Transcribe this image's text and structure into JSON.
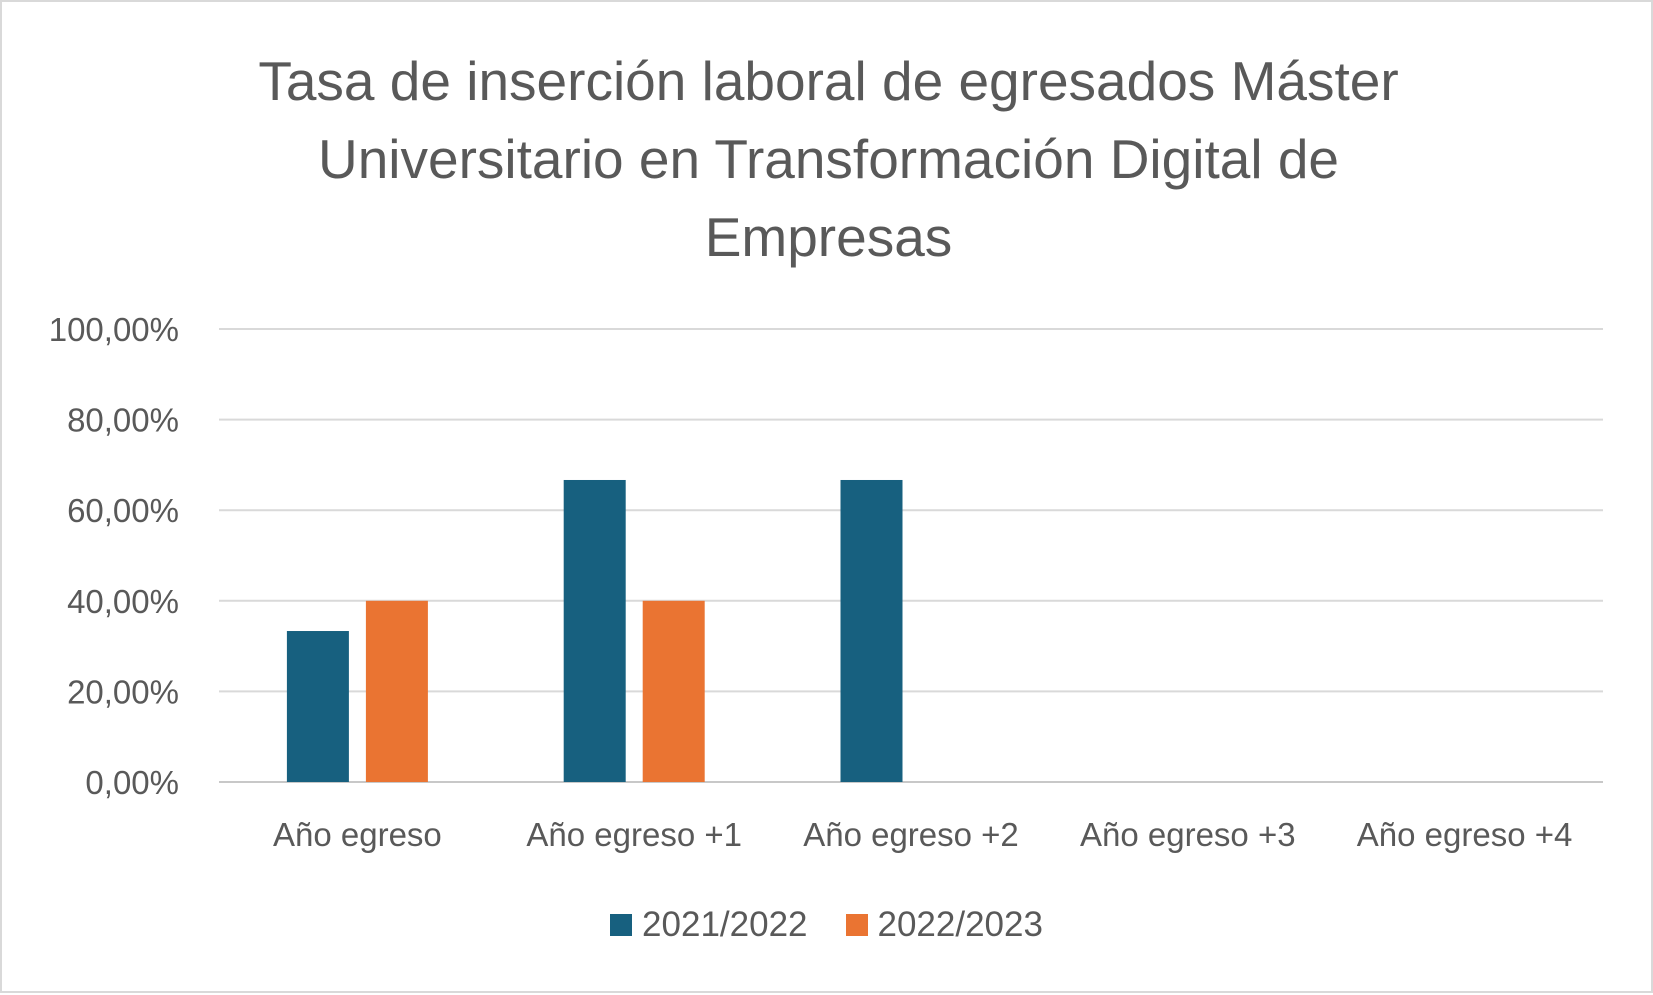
{
  "chart_data": {
    "type": "bar",
    "title_lines": [
      "Tasa de inserción laboral de egresados Máster",
      "Universitario en Transformación Digital de",
      "Empresas"
    ],
    "categories": [
      "Año egreso",
      "Año egreso +1",
      "Año egreso +2",
      "Año egreso +3",
      "Año egreso +4"
    ],
    "series": [
      {
        "name": "2021/2022",
        "color": "#17607f",
        "values": [
          33.33,
          66.67,
          66.67,
          null,
          null
        ]
      },
      {
        "name": "2022/2023",
        "color": "#ea7432",
        "values": [
          40.0,
          40.0,
          null,
          null,
          null
        ]
      }
    ],
    "yticks": [
      "0,00%",
      "20,00%",
      "40,00%",
      "60,00%",
      "80,00%",
      "100,00%"
    ],
    "ylim": [
      0,
      100
    ],
    "grid": true,
    "legend": "bottom",
    "xlabel": "",
    "ylabel": ""
  }
}
